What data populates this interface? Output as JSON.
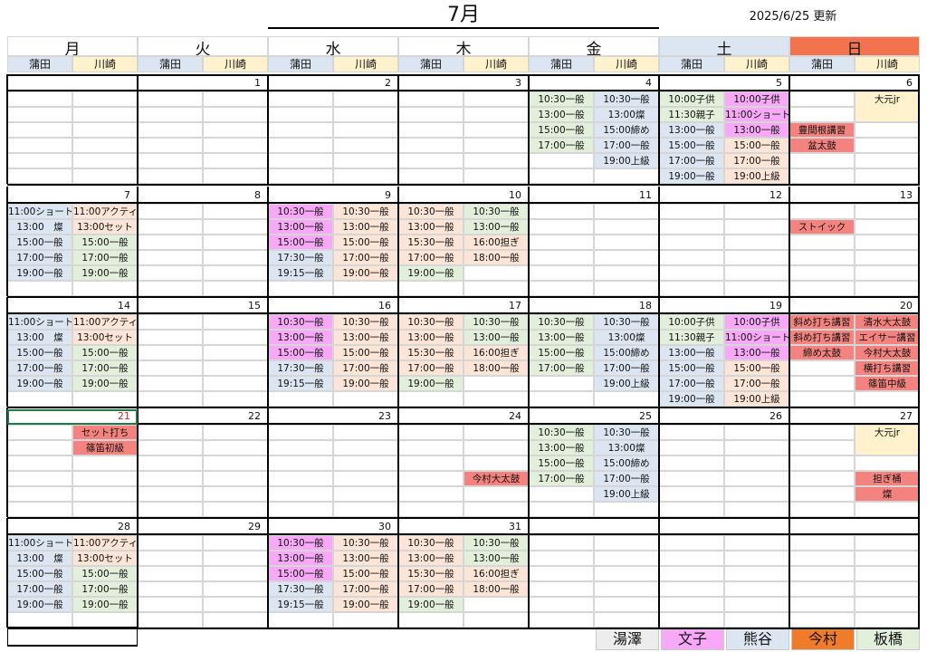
{
  "header": {
    "title": "7月",
    "updated": "2025/6/25 更新"
  },
  "days": [
    "月",
    "火",
    "水",
    "木",
    "金",
    "土",
    "日"
  ],
  "sub_cols": [
    "蒲田",
    "川崎"
  ],
  "colors": {
    "blue": "#dce6f2",
    "cream": "#fff2cc",
    "green": "#e2efda",
    "pink": "#f7a8f7",
    "peach": "#fce4d6",
    "salmon": "#f4837f",
    "orange": "#f4734f",
    "gray": "#ededed",
    "legend_orange": "#f07b29"
  },
  "weeks": [
    {
      "dates": [
        "",
        "1",
        "2",
        "3",
        "4",
        "5",
        "6"
      ],
      "slots": [
        [
          [
            "",
            ""
          ],
          [
            "",
            ""
          ],
          [
            "",
            ""
          ],
          [
            "",
            ""
          ],
          [
            "10:30一般",
            "10:30一般"
          ],
          [
            "10:00子供",
            "10:00子供"
          ],
          [
            "",
            "大元jr"
          ]
        ],
        [
          [
            "",
            ""
          ],
          [
            "",
            ""
          ],
          [
            "",
            ""
          ],
          [
            "",
            ""
          ],
          [
            "13:00一般",
            "13:00燦"
          ],
          [
            "11:30親子",
            "11:00ショート"
          ],
          [
            "",
            ""
          ]
        ],
        [
          [
            "",
            ""
          ],
          [
            "",
            ""
          ],
          [
            "",
            ""
          ],
          [
            "",
            ""
          ],
          [
            "15:00一般",
            "15:00締め"
          ],
          [
            "13:00一般",
            "13:00一般"
          ],
          [
            "豊間根講習",
            ""
          ]
        ],
        [
          [
            "",
            ""
          ],
          [
            "",
            ""
          ],
          [
            "",
            ""
          ],
          [
            "",
            ""
          ],
          [
            "17:00一般",
            "17:00一般"
          ],
          [
            "15:00一般",
            "15:00一般"
          ],
          [
            "盆太鼓",
            ""
          ]
        ],
        [
          [
            "",
            ""
          ],
          [
            "",
            ""
          ],
          [
            "",
            ""
          ],
          [
            "",
            ""
          ],
          [
            "",
            "19:00上級"
          ],
          [
            "17:00一般",
            "17:00一般"
          ],
          [
            "",
            ""
          ]
        ],
        [
          [
            "",
            ""
          ],
          [
            "",
            ""
          ],
          [
            "",
            ""
          ],
          [
            "",
            ""
          ],
          [
            "",
            ""
          ],
          [
            "19:00一般",
            "19:00上級"
          ],
          [
            "",
            ""
          ]
        ]
      ]
    },
    {
      "dates": [
        "7",
        "8",
        "9",
        "10",
        "11",
        "12",
        "13"
      ],
      "slots": [
        [
          [
            "11:00ショート",
            "11:00アクティ"
          ],
          [
            "",
            ""
          ],
          [
            "10:30一般",
            "10:30一般"
          ],
          [
            "10:30一般",
            "10:30一般"
          ],
          [
            "",
            ""
          ],
          [
            "",
            ""
          ],
          [
            "",
            ""
          ]
        ],
        [
          [
            "13:00　燦",
            "13:00セット"
          ],
          [
            "",
            ""
          ],
          [
            "13:00一般",
            "13:00一般"
          ],
          [
            "13:00一般",
            "13:00一般"
          ],
          [
            "",
            ""
          ],
          [
            "",
            ""
          ],
          [
            "ストイック",
            ""
          ]
        ],
        [
          [
            "15:00一般",
            "15:00一般"
          ],
          [
            "",
            ""
          ],
          [
            "15:00一般",
            "15:00一般"
          ],
          [
            "15:30一般",
            "16:00担ぎ"
          ],
          [
            "",
            ""
          ],
          [
            "",
            ""
          ],
          [
            "",
            ""
          ]
        ],
        [
          [
            "17:00一般",
            "17:00一般"
          ],
          [
            "",
            ""
          ],
          [
            "17:30一般",
            "17:00一般"
          ],
          [
            "17:00一般",
            "18:00一般"
          ],
          [
            "",
            ""
          ],
          [
            "",
            ""
          ],
          [
            "",
            ""
          ]
        ],
        [
          [
            "19:00一般",
            "19:00一般"
          ],
          [
            "",
            ""
          ],
          [
            "19:15一般",
            "19:00一般"
          ],
          [
            "19:00一般",
            ""
          ],
          [
            "",
            ""
          ],
          [
            "",
            ""
          ],
          [
            "",
            ""
          ]
        ],
        [
          [
            "",
            ""
          ],
          [
            "",
            ""
          ],
          [
            "",
            ""
          ],
          [
            "",
            ""
          ],
          [
            "",
            ""
          ],
          [
            "",
            ""
          ],
          [
            "",
            ""
          ]
        ]
      ]
    },
    {
      "dates": [
        "14",
        "15",
        "16",
        "17",
        "18",
        "19",
        "20"
      ],
      "slots": [
        [
          [
            "11:00ショート",
            "11:00アクティ"
          ],
          [
            "",
            ""
          ],
          [
            "10:30一般",
            "10:30一般"
          ],
          [
            "10:30一般",
            "10:30一般"
          ],
          [
            "10:30一般",
            "10:30一般"
          ],
          [
            "10:00子供",
            "10:00子供"
          ],
          [
            "斜め打ち講習",
            "清水大太鼓"
          ]
        ],
        [
          [
            "13:00　燦",
            "13:00セット"
          ],
          [
            "",
            ""
          ],
          [
            "13:00一般",
            "13:00一般"
          ],
          [
            "13:00一般",
            "13:00一般"
          ],
          [
            "13:00一般",
            "13:00燦"
          ],
          [
            "11:30親子",
            "11:00ショート"
          ],
          [
            "斜め打ち講習",
            "エイサー講習"
          ]
        ],
        [
          [
            "15:00一般",
            "15:00一般"
          ],
          [
            "",
            ""
          ],
          [
            "15:00一般",
            "15:00一般"
          ],
          [
            "15:30一般",
            "16:00担ぎ"
          ],
          [
            "15:00一般",
            "15:00締め"
          ],
          [
            "13:00一般",
            "13:00一般"
          ],
          [
            "締め太鼓",
            "今村大太鼓"
          ]
        ],
        [
          [
            "17:00一般",
            "17:00一般"
          ],
          [
            "",
            ""
          ],
          [
            "17:30一般",
            "17:00一般"
          ],
          [
            "17:00一般",
            "18:00一般"
          ],
          [
            "17:00一般",
            "17:00一般"
          ],
          [
            "15:00一般",
            "15:00一般"
          ],
          [
            "",
            "横打ち講習"
          ]
        ],
        [
          [
            "19:00一般",
            "19:00一般"
          ],
          [
            "",
            ""
          ],
          [
            "19:15一般",
            "19:00一般"
          ],
          [
            "19:00一般",
            ""
          ],
          [
            "",
            "19:00上級"
          ],
          [
            "17:00一般",
            "17:00一般"
          ],
          [
            "",
            "篠笛中級"
          ]
        ],
        [
          [
            "",
            ""
          ],
          [
            "",
            ""
          ],
          [
            "",
            ""
          ],
          [
            "",
            ""
          ],
          [
            "",
            ""
          ],
          [
            "19:00一般",
            "19:00上級"
          ],
          [
            "",
            ""
          ]
        ]
      ]
    },
    {
      "dates": [
        "21",
        "22",
        "23",
        "24",
        "25",
        "26",
        "27"
      ],
      "slots": [
        [
          [
            "",
            "セット打ち"
          ],
          [
            "",
            ""
          ],
          [
            "",
            ""
          ],
          [
            "",
            ""
          ],
          [
            "10:30一般",
            "10:30一般"
          ],
          [
            "",
            ""
          ],
          [
            "",
            "大元jr"
          ]
        ],
        [
          [
            "",
            "篠笛初級"
          ],
          [
            "",
            ""
          ],
          [
            "",
            ""
          ],
          [
            "",
            ""
          ],
          [
            "13:00一般",
            "13:00燦"
          ],
          [
            "",
            ""
          ],
          [
            "",
            ""
          ]
        ],
        [
          [
            "",
            ""
          ],
          [
            "",
            ""
          ],
          [
            "",
            ""
          ],
          [
            "",
            ""
          ],
          [
            "15:00一般",
            "15:00締め"
          ],
          [
            "",
            ""
          ],
          [
            "",
            ""
          ]
        ],
        [
          [
            "",
            ""
          ],
          [
            "",
            ""
          ],
          [
            "",
            ""
          ],
          [
            "",
            "今村大太鼓"
          ],
          [
            "17:00一般",
            "17:00一般"
          ],
          [
            "",
            ""
          ],
          [
            "",
            "担ぎ桶"
          ]
        ],
        [
          [
            "",
            ""
          ],
          [
            "",
            ""
          ],
          [
            "",
            ""
          ],
          [
            "",
            ""
          ],
          [
            "",
            "19:00上級"
          ],
          [
            "",
            ""
          ],
          [
            "",
            "燦"
          ]
        ],
        [
          [
            "",
            ""
          ],
          [
            "",
            ""
          ],
          [
            "",
            ""
          ],
          [
            "",
            ""
          ],
          [
            "",
            ""
          ],
          [
            "",
            ""
          ],
          [
            "",
            ""
          ]
        ]
      ]
    },
    {
      "dates": [
        "28",
        "29",
        "30",
        "31",
        "",
        "",
        ""
      ],
      "slots": [
        [
          [
            "11:00ショート",
            "11:00アクティ"
          ],
          [
            "",
            ""
          ],
          [
            "10:30一般",
            "10:30一般"
          ],
          [
            "10:30一般",
            "10:30一般"
          ],
          [
            "",
            ""
          ],
          [
            "",
            ""
          ],
          [
            "",
            ""
          ]
        ],
        [
          [
            "13:00　燦",
            "13:00セット"
          ],
          [
            "",
            ""
          ],
          [
            "13:00一般",
            "13:00一般"
          ],
          [
            "13:00一般",
            "13:00一般"
          ],
          [
            "",
            ""
          ],
          [
            "",
            ""
          ],
          [
            "",
            ""
          ]
        ],
        [
          [
            "15:00一般",
            "15:00一般"
          ],
          [
            "",
            ""
          ],
          [
            "15:00一般",
            "15:00一般"
          ],
          [
            "15:30一般",
            "16:00担ぎ"
          ],
          [
            "",
            ""
          ],
          [
            "",
            ""
          ],
          [
            "",
            ""
          ]
        ],
        [
          [
            "17:00一般",
            "17:00一般"
          ],
          [
            "",
            ""
          ],
          [
            "17:30一般",
            "17:00一般"
          ],
          [
            "17:00一般",
            "18:00一般"
          ],
          [
            "",
            ""
          ],
          [
            "",
            ""
          ],
          [
            "",
            ""
          ]
        ],
        [
          [
            "19:00一般",
            "19:00一般"
          ],
          [
            "",
            ""
          ],
          [
            "19:15一般",
            "19:00一般"
          ],
          [
            "19:00一般",
            ""
          ],
          [
            "",
            ""
          ],
          [
            "",
            ""
          ],
          [
            "",
            ""
          ]
        ],
        [
          [
            "",
            ""
          ],
          [
            "",
            ""
          ],
          [
            "",
            ""
          ],
          [
            "",
            ""
          ],
          [
            "",
            ""
          ],
          [
            "",
            ""
          ],
          [
            "",
            ""
          ]
        ]
      ]
    }
  ],
  "legend": [
    {
      "label": "湯澤",
      "color": "#ededed"
    },
    {
      "label": "文子",
      "color": "#f7a8f7"
    },
    {
      "label": "熊谷",
      "color": "#dce6f2"
    },
    {
      "label": "今村",
      "color": "#f07b29"
    },
    {
      "label": "板橋",
      "color": "#e2efda"
    }
  ]
}
